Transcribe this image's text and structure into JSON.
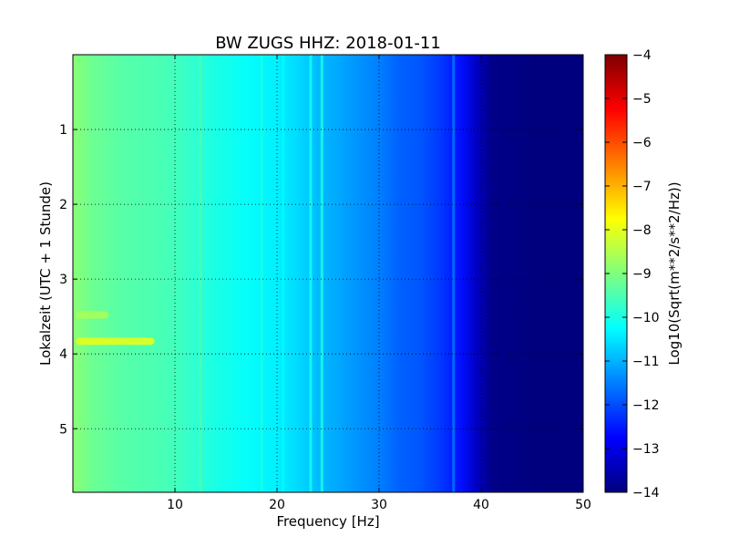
{
  "chart_data": {
    "type": "heatmap",
    "title": "BW ZUGS HHZ: 2018-01-11",
    "xlabel": "Frequency [Hz]",
    "ylabel": "Lokalzeit (UTC + 1 Stunde)",
    "xlim": [
      0,
      50
    ],
    "ylim": [
      5.85,
      0
    ],
    "xticks": [
      10,
      20,
      30,
      40,
      50
    ],
    "yticks": [
      1,
      2,
      3,
      4,
      5
    ],
    "grid": true,
    "colorbar": {
      "label": "Log10(Sqrt(m**2/s**2/Hz))",
      "range": [
        -14,
        -4
      ],
      "ticks": [
        -4,
        -5,
        -6,
        -7,
        -8,
        -9,
        -10,
        -11,
        -12,
        -13,
        -14
      ],
      "colormap": "jet"
    },
    "frequency_profile": {
      "frequency_hz": [
        0,
        2,
        5,
        8,
        10,
        12,
        14,
        17,
        20,
        22,
        24,
        26,
        28,
        30,
        32,
        34,
        36,
        38,
        39.5,
        41,
        45,
        50
      ],
      "log10_amplitude": [
        -8.9,
        -9.2,
        -9.4,
        -9.5,
        -9.6,
        -9.8,
        -10.0,
        -10.2,
        -10.4,
        -10.6,
        -10.9,
        -11.1,
        -11.3,
        -11.5,
        -11.8,
        -11.9,
        -12.2,
        -12.6,
        -13.3,
        -13.9,
        -14.0,
        -14.0
      ]
    },
    "line_features": [
      {
        "frequency_hz": 12.5,
        "log10_amplitude": -9.5
      },
      {
        "frequency_hz": 18.5,
        "log10_amplitude": -10.0
      },
      {
        "frequency_hz": 20.6,
        "log10_amplitude": -10.3
      },
      {
        "frequency_hz": 23.3,
        "log10_amplitude": -10.1
      },
      {
        "frequency_hz": 24.4,
        "log10_amplitude": -10.0
      },
      {
        "frequency_hz": 37.3,
        "log10_amplitude": -11.6
      }
    ],
    "hotspots": [
      {
        "time_h": 3.83,
        "freq_range_hz": [
          0.3,
          8.0
        ],
        "log10_amplitude": -8.0
      },
      {
        "time_h": 3.48,
        "freq_range_hz": [
          0.3,
          3.5
        ],
        "log10_amplitude": -8.6
      }
    ]
  },
  "colors": {
    "jet": [
      "#00007f",
      "#0000ff",
      "#007fff",
      "#00ffff",
      "#7fff7f",
      "#ffff00",
      "#ff7f00",
      "#ff0000",
      "#7f0000"
    ]
  }
}
